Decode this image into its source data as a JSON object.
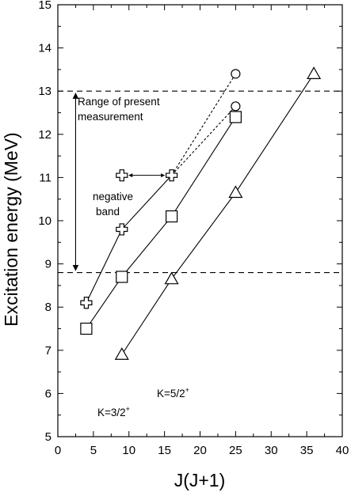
{
  "chart_data": {
    "type": "line",
    "xlabel": "J(J+1)",
    "ylabel": "Excitation energy (MeV)",
    "xlim": [
      0,
      40
    ],
    "ylim": [
      5,
      15
    ],
    "x_ticks": [
      0,
      5,
      10,
      15,
      20,
      25,
      30,
      35,
      40
    ],
    "y_ticks": [
      5,
      6,
      7,
      8,
      9,
      10,
      11,
      12,
      13,
      14,
      15
    ],
    "grid": false,
    "series": [
      {
        "name": "negative band",
        "marker": "cross",
        "line": "solid",
        "points": [
          [
            4,
            8.1
          ],
          [
            9,
            9.8
          ],
          [
            16,
            11.05
          ]
        ]
      },
      {
        "name": "",
        "marker": "circle",
        "line": "dashed",
        "points": [
          [
            16,
            11.05
          ],
          [
            25,
            12.65
          ]
        ]
      },
      {
        "name": "",
        "marker": "circle",
        "line": "dashed",
        "points": [
          [
            16,
            11.05
          ],
          [
            25,
            13.4
          ]
        ]
      },
      {
        "name": "K=3/2+",
        "marker": "square",
        "line": "solid",
        "points": [
          [
            4,
            7.5
          ],
          [
            9,
            8.7
          ],
          [
            16,
            10.1
          ],
          [
            25,
            12.4
          ]
        ]
      },
      {
        "name": "K=5/2+",
        "marker": "triangle",
        "line": "solid",
        "points": [
          [
            9,
            6.9
          ],
          [
            16,
            8.65
          ],
          [
            25,
            10.65
          ],
          [
            36,
            13.4
          ]
        ]
      }
    ],
    "extra_markers": [
      {
        "marker": "cross",
        "point": [
          9,
          11.05
        ]
      }
    ],
    "reference_lines": [
      {
        "y": 13.0,
        "style": "dashed"
      },
      {
        "y": 8.8,
        "style": "dashed"
      }
    ],
    "range_arrow": {
      "x": 2.5,
      "y_from": 12.95,
      "y_to": 8.85
    },
    "horizontal_arrow": {
      "y": 11.05,
      "x_from": 9,
      "x_to": 16
    },
    "annotations": {
      "range_line1": "Range of present",
      "range_line2": "measurement",
      "negative_line1": "negative",
      "negative_line2": "band",
      "k32_base": "K=3/2",
      "k32_sup": "+",
      "k52_base": "K=5/2",
      "k52_sup": "+"
    }
  }
}
